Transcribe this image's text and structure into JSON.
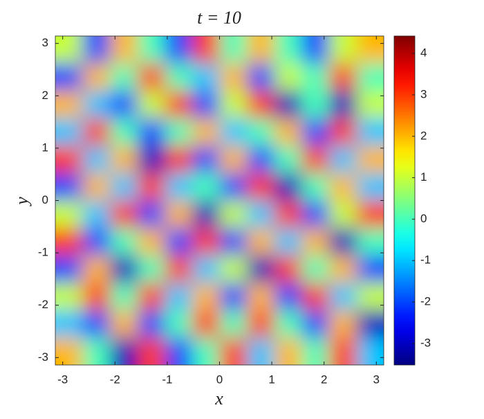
{
  "chart_data": {
    "type": "heatmap",
    "title": "t = 10",
    "xlabel": "x",
    "ylabel": "y",
    "xlim": [
      -3.1416,
      3.1416
    ],
    "ylim": [
      -3.1416,
      3.1416
    ],
    "xticks": [
      -3,
      -2,
      -1,
      0,
      1,
      2,
      3
    ],
    "yticks": [
      -3,
      -2,
      -1,
      0,
      1,
      2,
      3
    ],
    "colormap": "jet",
    "clim": [
      -3.52,
      4.42
    ],
    "cticks": [
      -3,
      -2,
      -1,
      0,
      1,
      2,
      3,
      4
    ],
    "z": [
      [
        1,
        -2,
        2,
        0,
        -2,
        3,
        0,
        2,
        0,
        -2,
        1,
        2
      ],
      [
        -2,
        2,
        0,
        3,
        0,
        -1,
        2,
        -2,
        1,
        0,
        3,
        0
      ],
      [
        2,
        -1,
        -2,
        1,
        3,
        -2,
        1,
        3,
        -3,
        0,
        -3,
        1
      ],
      [
        -1,
        3,
        0,
        -2,
        0,
        2,
        -1,
        0,
        2,
        -2,
        3,
        -1
      ],
      [
        3,
        -1,
        2,
        -3,
        3,
        -2,
        2,
        -2,
        0,
        3,
        -1,
        2
      ],
      [
        -2,
        2,
        -1,
        3,
        -1,
        0,
        -2,
        3,
        -3,
        0,
        2,
        -1
      ],
      [
        1,
        -1,
        3,
        -2,
        2,
        -3,
        1,
        -1,
        3,
        -2,
        1,
        3
      ],
      [
        3,
        -2,
        0,
        2,
        -2,
        3,
        -2,
        2,
        -1,
        2,
        -3,
        0
      ],
      [
        -2,
        2,
        -3,
        0,
        3,
        -1,
        1,
        -3,
        3,
        0,
        2,
        -2
      ],
      [
        1,
        3,
        0,
        3,
        -1,
        2,
        -2,
        2,
        -2,
        3,
        -1,
        1
      ],
      [
        -1,
        -2,
        2,
        -2,
        0,
        3,
        0,
        3,
        0,
        -2,
        2,
        -3
      ],
      [
        2,
        0,
        -3,
        3,
        -2,
        0,
        3,
        -1,
        2,
        0,
        3,
        -1
      ]
    ]
  }
}
